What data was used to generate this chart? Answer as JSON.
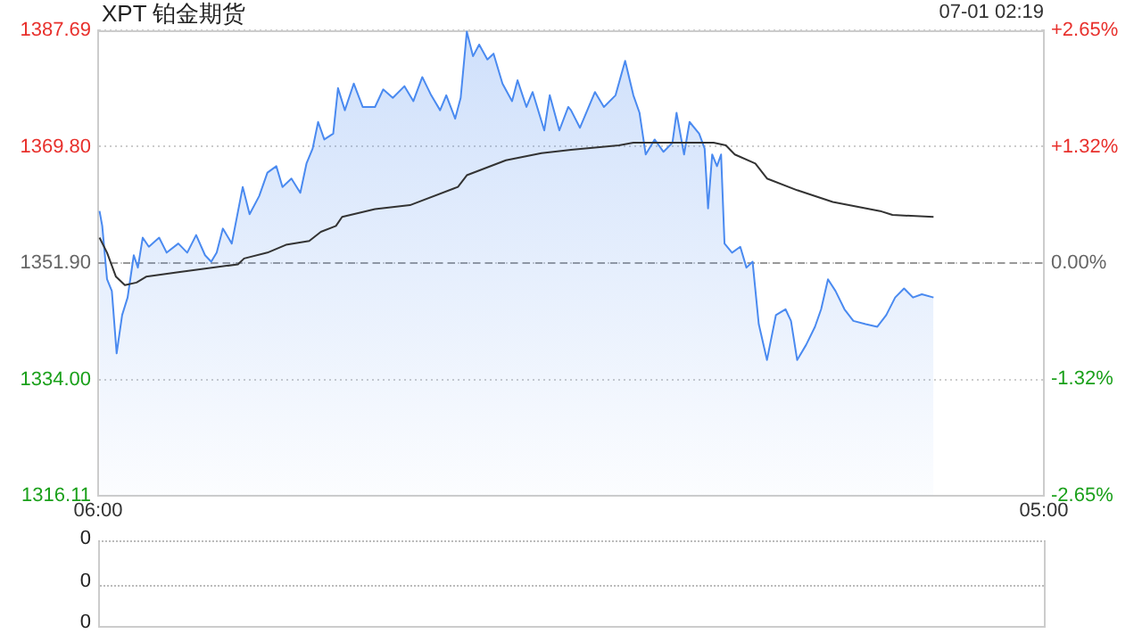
{
  "chart_data": [
    {
      "type": "area",
      "title": "XPT 铂金期货",
      "annotations": [
        "07-01 02:19"
      ],
      "xlim": [
        "--06-30T06:00",
        "--07-01T05:00"
      ],
      "xticks": [
        {
          "value": "--06-30T06:00",
          "label": "06:00"
        },
        {
          "value": "--07-01T05:00",
          "label": "05:00"
        }
      ],
      "ylim": [
        1316.11,
        1387.69
      ],
      "yticks": [
        1316.11,
        {
          "value": 1334,
          "label": "1334.00"
        },
        {
          "value": 1351.9,
          "label": "1351.90"
        },
        {
          "value": 1369.8,
          "label": "1369.80"
        },
        1387.69
      ],
      "y2lim": [
        -2.65,
        2.65
      ],
      "y2ticks": [
        {
          "value": -2.65,
          "label": "-2.65%"
        },
        {
          "value": -1.32,
          "label": "-1.32%"
        },
        {
          "value": 0,
          "label": "0.00%"
        },
        {
          "value": 1.32,
          "label": "+1.32%"
        },
        {
          "value": 2.65,
          "label": "+2.65%"
        }
      ],
      "grid": "y",
      "legend": false,
      "marker": "none",
      "ref_lines": [
        {
          "axis": "y",
          "value": 1351.9,
          "color": "#999999",
          "line_style": "dashed"
        }
      ],
      "series": [
        {
          "type": "area",
          "color": "#4a8af0",
          "x": [
            "--06-30T06:02",
            "--06-30T06:06",
            "--06-30T06:13",
            "--06-30T06:20",
            "--06-30T06:27",
            "--06-30T06:35",
            "--06-30T06:43",
            "--06-30T06:52",
            "--06-30T06:58",
            "--06-30T07:05",
            "--06-30T07:14",
            "--06-30T07:29",
            "--06-30T07:40",
            "--06-30T07:57",
            "--06-30T08:10",
            "--06-30T08:23",
            "--06-30T08:36",
            "--06-30T08:45",
            "--06-30T08:53",
            "--06-30T09:02",
            "--06-30T09:15",
            "--06-30T09:31",
            "--06-30T09:41",
            "--06-30T09:55",
            "--06-30T10:07",
            "--06-30T10:20",
            "--06-30T10:29",
            "--06-30T10:42",
            "--06-30T10:55",
            "--06-30T11:04",
            "--06-30T11:13",
            "--06-30T11:21",
            "--06-30T11:30",
            "--06-30T11:43",
            "--06-30T11:50",
            "--06-30T12:00",
            "--06-30T12:13",
            "--06-30T12:26",
            "--06-30T12:44",
            "--06-30T12:56",
            "--06-30T13:10",
            "--06-30T13:27",
            "--06-30T13:40",
            "--06-30T13:53",
            "--06-30T14:06",
            "--06-30T14:19",
            "--06-30T14:28",
            "--06-30T14:41",
            "--06-30T14:49",
            "--06-30T14:58",
            "--06-30T15:07",
            "--06-30T15:16",
            "--06-30T15:28",
            "--06-30T15:37",
            "--06-30T15:50",
            "--06-30T16:04",
            "--06-30T16:12",
            "--06-30T16:25",
            "--06-30T16:34",
            "--06-30T16:51",
            "--06-30T16:59",
            "--06-30T17:13",
            "--06-30T17:26",
            "--06-30T17:30",
            "--06-30T17:43",
            "--06-30T18:05",
            "--06-30T18:18",
            "--06-30T18:35",
            "--06-30T18:49",
            "--06-30T19:01",
            "--06-30T19:10",
            "--06-30T19:19",
            "--06-30T19:32",
            "--06-30T19:45",
            "--06-30T19:58",
            "--06-30T20:04",
            "--06-30T20:15",
            "--06-30T20:23",
            "--06-30T20:37",
            "--06-30T20:45",
            "--06-30T20:50",
            "--06-30T20:56",
            "--06-30T21:03",
            "--06-30T21:09",
            "--06-30T21:14",
            "--06-30T21:25",
            "--06-30T21:37",
            "--06-30T21:46",
            "--06-30T21:55",
            "--06-30T22:04",
            "--06-30T22:16",
            "--06-30T22:29",
            "--06-30T22:43",
            "--06-30T22:51",
            "--06-30T23:00",
            "--06-30T23:13",
            "--06-30T23:26",
            "--06-30T23:35",
            "--06-30T23:45",
            "--06-30T23:56",
            "--07-01T00:09",
            "--07-01T00:22",
            "--07-01T00:40",
            "--07-01T00:57",
            "--07-01T01:10",
            "--07-01T01:23",
            "--07-01T01:36",
            "--07-01T01:49",
            "--07-01T02:02",
            "--07-01T02:19"
          ],
          "values": [
            1359.9,
            1357.6,
            1349.4,
            1347.6,
            1338.0,
            1343.9,
            1346.6,
            1353.1,
            1351.2,
            1355.8,
            1354.4,
            1355.8,
            1353.5,
            1354.9,
            1353.5,
            1356.2,
            1353.1,
            1352.1,
            1353.5,
            1357.2,
            1354.9,
            1363.6,
            1359.4,
            1362.2,
            1365.8,
            1366.8,
            1363.6,
            1364.9,
            1362.7,
            1367.2,
            1369.5,
            1373.6,
            1370.9,
            1371.8,
            1378.8,
            1375.4,
            1379.5,
            1375.9,
            1375.9,
            1378.6,
            1377.3,
            1379.1,
            1376.8,
            1380.5,
            1377.7,
            1375.4,
            1377.7,
            1374.1,
            1377.3,
            1387.5,
            1383.7,
            1385.5,
            1383.2,
            1384.1,
            1379.5,
            1376.8,
            1380.0,
            1375.9,
            1378.2,
            1372.3,
            1377.7,
            1372.3,
            1375.9,
            1375.4,
            1372.7,
            1378.2,
            1375.9,
            1377.7,
            1383.0,
            1377.7,
            1375.0,
            1368.6,
            1370.9,
            1369.0,
            1370.4,
            1375.0,
            1368.6,
            1373.6,
            1371.8,
            1369.5,
            1360.3,
            1368.6,
            1366.8,
            1368.6,
            1354.9,
            1353.5,
            1354.4,
            1351.2,
            1352.1,
            1342.5,
            1337.0,
            1343.9,
            1344.8,
            1343.0,
            1337.0,
            1339.3,
            1342.1,
            1344.8,
            1349.4,
            1347.6,
            1344.8,
            1343.0,
            1342.5,
            1342.1,
            1343.9,
            1346.6,
            1348.0,
            1346.6,
            1347.1,
            1346.6
          ]
        },
        {
          "type": "line",
          "color": "#333333",
          "x": [
            "--06-30T06:02",
            "--06-30T06:13",
            "--06-30T06:26",
            "--06-30T06:39",
            "--06-30T06:56",
            "--06-30T07:10",
            "--06-30T07:57",
            "--06-30T09:24",
            "--06-30T09:33",
            "--06-30T10:07",
            "--06-30T10:34",
            "--06-30T11:08",
            "--06-30T11:25",
            "--06-30T11:47",
            "--06-30T11:56",
            "--06-30T12:44",
            "--06-30T13:35",
            "--06-30T14:45",
            "--06-30T14:58",
            "--06-30T15:55",
            "--06-30T16:47",
            "--06-30T17:30",
            "--06-30T18:40",
            "--06-30T19:01",
            "--06-30T20:58",
            "--06-30T21:16",
            "--06-30T21:29",
            "--06-30T21:59",
            "--06-30T22:16",
            "--06-30T23:00",
            "--06-30T23:52",
            "--07-01T01:01",
            "--07-01T01:19",
            "--07-01T02:19"
          ],
          "values": [
            1355.8,
            1353.5,
            1349.8,
            1348.5,
            1348.9,
            1349.8,
            1350.5,
            1351.7,
            1352.6,
            1353.5,
            1354.7,
            1355.3,
            1356.7,
            1357.6,
            1359.0,
            1360.2,
            1360.8,
            1363.6,
            1365.4,
            1367.7,
            1368.8,
            1369.3,
            1370.0,
            1370.4,
            1370.4,
            1370.0,
            1368.6,
            1367.2,
            1364.9,
            1363.1,
            1361.3,
            1359.9,
            1359.3,
            1359.0
          ]
        }
      ]
    },
    {
      "type": "other",
      "annotations": [
        "0",
        "0",
        "0"
      ]
    }
  ]
}
